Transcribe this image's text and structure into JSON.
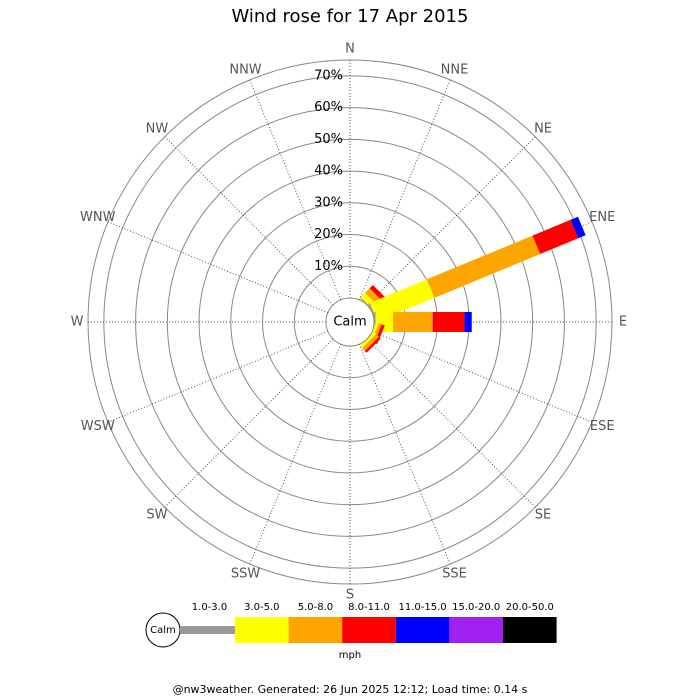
{
  "chart_data": {
    "type": "windrose",
    "title": "Wind rose for 17 Apr 2015",
    "directions": [
      "N",
      "NNE",
      "NE",
      "ENE",
      "E",
      "ESE",
      "SE",
      "SSE",
      "S",
      "SSW",
      "SW",
      "WSW",
      "W",
      "WNW",
      "NW",
      "NNW"
    ],
    "center_label": "Calm",
    "rlim": [
      0,
      75
    ],
    "rticks": [
      {
        "value": 10,
        "label": "10%"
      },
      {
        "value": 20,
        "label": "20%"
      },
      {
        "value": 30,
        "label": "30%"
      },
      {
        "value": 40,
        "label": "40%"
      },
      {
        "value": 50,
        "label": "50%"
      },
      {
        "value": 60,
        "label": "60%"
      },
      {
        "value": 70,
        "label": "70%"
      }
    ],
    "series": [
      {
        "name": "1.0-3.0",
        "color": "#999999",
        "values": [
          0,
          0,
          0.3,
          0.5,
          0.5,
          0,
          0,
          0,
          0,
          0,
          0,
          0,
          0,
          0,
          0,
          0
        ]
      },
      {
        "name": "3.0-5.0",
        "color": "#ffff00",
        "values": [
          0,
          0,
          2,
          19.5,
          5.5,
          1,
          1,
          0,
          0,
          0,
          0,
          0,
          0,
          0,
          0,
          0
        ]
      },
      {
        "name": "5.0-8.0",
        "color": "#ffa500",
        "values": [
          0,
          0,
          2,
          36,
          12.5,
          1,
          1.2,
          0,
          0,
          0,
          0,
          0,
          0,
          0,
          0,
          0
        ]
      },
      {
        "name": "8.0-11.0",
        "color": "#ff0000",
        "values": [
          0,
          0,
          1.5,
          13,
          10,
          1,
          0.8,
          0,
          0,
          0,
          0,
          0,
          0,
          0,
          0,
          0
        ]
      },
      {
        "name": "11.0-15.0",
        "color": "#0000ff",
        "values": [
          0,
          0,
          0,
          2.5,
          2.3,
          0,
          0,
          0,
          0,
          0,
          0,
          0,
          0,
          0,
          0,
          0
        ]
      },
      {
        "name": "15.0-20.0",
        "color": "#a020f0",
        "values": [
          0,
          0,
          0,
          0,
          0,
          0,
          0,
          0,
          0,
          0,
          0,
          0,
          0,
          0,
          0,
          0
        ]
      },
      {
        "name": "20.0-50.0",
        "color": "#000000",
        "values": [
          0,
          0,
          0,
          0,
          0,
          0,
          0,
          0,
          0,
          0,
          0,
          0,
          0,
          0,
          0,
          0
        ]
      }
    ],
    "legend_unit": "mph",
    "footer": "@nw3weather. Generated: 26 Jun 2025 12:12; Load time: 0.14 s"
  }
}
